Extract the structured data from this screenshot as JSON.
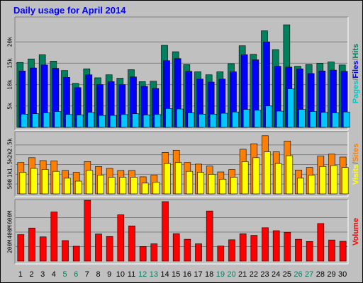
{
  "chart_data": {
    "type": "bar",
    "title": "Daily usage for April 2014",
    "categories": [
      "1",
      "2",
      "3",
      "4",
      "5",
      "6",
      "7",
      "8",
      "9",
      "10",
      "11",
      "12",
      "13",
      "14",
      "15",
      "16",
      "17",
      "18",
      "19",
      "20",
      "21",
      "22",
      "23",
      "24",
      "25",
      "26",
      "27",
      "28",
      "29",
      "30"
    ],
    "weekend_days": [
      "5",
      "6",
      "12",
      "13",
      "19",
      "20",
      "26",
      "27"
    ],
    "panels": [
      {
        "id": "hits-files-pages",
        "ylabel_parts": [
          {
            "text": "Pages",
            "color": "#00c8c8"
          },
          {
            "text": "/",
            "color": "#808080"
          },
          {
            "text": "Files",
            "color": "#0000ff"
          },
          {
            "text": "/",
            "color": "#808080"
          },
          {
            "text": "Hits",
            "color": "#00805f"
          }
        ],
        "yticks": [
          "5k",
          "10k",
          "15k",
          "20k"
        ],
        "ytick_values": [
          5000,
          10000,
          15000,
          20000
        ],
        "ylim": [
          0,
          25000
        ],
        "series": [
          {
            "name": "Hits",
            "color": "#00805f",
            "values": [
              15200,
              16000,
              17000,
              15500,
              13300,
              10300,
              13700,
              11600,
              12300,
              11500,
              13500,
              10700,
              10800,
              19200,
              17700,
              14700,
              13000,
              12300,
              13000,
              14900,
              19100,
              17100,
              22600,
              18200,
              24000,
              14300,
              14700,
              15000,
              15300,
              14600
            ]
          },
          {
            "name": "Files",
            "color": "#0000ff",
            "values": [
              13200,
              13900,
              14600,
              13800,
              11700,
              9300,
              12300,
              10000,
              10700,
              10000,
              11800,
              9600,
              9100,
              15600,
              16100,
              13100,
              11300,
              10600,
              11300,
              13000,
              17000,
              15800,
              20000,
              14300,
              14100,
              13700,
              12600,
              13200,
              13400,
              13100
            ]
          },
          {
            "name": "Pages",
            "color": "#00c8ff",
            "values": [
              3100,
              3200,
              3400,
              3700,
              3000,
              2900,
              3500,
              2800,
              2800,
              3000,
              3200,
              2900,
              3000,
              4400,
              4300,
              3400,
              3100,
              3100,
              3300,
              3600,
              4200,
              4000,
              5000,
              3800,
              9000,
              4200,
              3700,
              3500,
              3400,
              3600
            ]
          }
        ]
      },
      {
        "id": "sites-visits",
        "ylabel_parts": [
          {
            "text": "Visits",
            "color": "#ffff00"
          },
          {
            "text": "/",
            "color": "#808080"
          },
          {
            "text": "Sites",
            "color": "#ff8000"
          }
        ],
        "yticks": [
          "500",
          "1k",
          "1.5k",
          "2k",
          "2.5k"
        ],
        "ytick_values": [
          500,
          1000,
          1500,
          2000,
          2500
        ],
        "ylim": [
          0,
          3000
        ],
        "series": [
          {
            "name": "Sites",
            "color": "#ff8000",
            "values": [
              1600,
              1850,
              1700,
              1680,
              1200,
              1100,
              1650,
              1400,
              1300,
              1200,
              1200,
              870,
              950,
              2120,
              2230,
              1600,
              1520,
              1420,
              1120,
              1240,
              2280,
              2560,
              2970,
              2150,
              2700,
              1220,
              1350,
              1930,
              2030,
              1880
            ]
          },
          {
            "name": "Visits",
            "color": "#ffff00",
            "values": [
              1100,
              1300,
              1250,
              1150,
              800,
              650,
              1200,
              950,
              850,
              850,
              850,
              550,
              600,
              1550,
              1600,
              1150,
              1100,
              1000,
              750,
              850,
              1650,
              1850,
              2150,
              1550,
              1950,
              800,
              950,
              1400,
              1450,
              1350
            ]
          }
        ]
      },
      {
        "id": "volume",
        "ylabel_parts": [
          {
            "text": "Volume",
            "color": "#ff0000"
          }
        ],
        "yticks": [
          "200M",
          "400M",
          "600M"
        ],
        "ytick_values": [
          200,
          400,
          600
        ],
        "ylim": [
          0,
          800
        ],
        "series": [
          {
            "name": "Volume",
            "color": "#ff0000",
            "values": [
              365,
              456,
              334,
              677,
              283,
              205,
              838,
              373,
              339,
              638,
              485,
              201,
              238,
              820,
              377,
              301,
              238,
              691,
              207,
              294,
              376,
              355,
              460,
              419,
              398,
              301,
              270,
              518,
              291,
              273
            ]
          }
        ]
      }
    ]
  }
}
